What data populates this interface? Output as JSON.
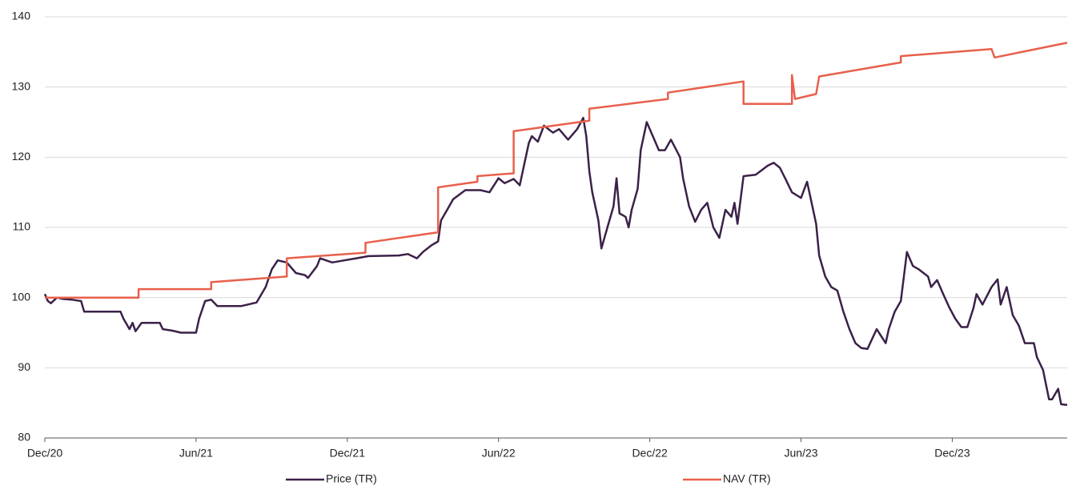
{
  "chart_data": {
    "type": "line",
    "xlim": [
      2020.92,
      2024.3
    ],
    "xticks": [
      {
        "value": 2020.92,
        "label": "Dec/20"
      },
      {
        "value": 2021.42,
        "label": "Jun/21"
      },
      {
        "value": 2021.92,
        "label": "Dec/21"
      },
      {
        "value": 2022.42,
        "label": "Jun/22"
      },
      {
        "value": 2022.92,
        "label": "Dec/22"
      },
      {
        "value": 2023.42,
        "label": "Jun/23"
      },
      {
        "value": 2023.92,
        "label": "Dec/23"
      }
    ],
    "ylim": [
      80,
      140
    ],
    "yticks": [
      80,
      90,
      100,
      110,
      120,
      130,
      140
    ],
    "grid": true,
    "series": [
      {
        "name": "Price (TR)",
        "color": "#3b2148",
        "x": [
          2020.92,
          2020.93,
          2020.94,
          2020.96,
          2020.98,
          2021.01,
          2021.04,
          2021.05,
          2021.09,
          2021.17,
          2021.18,
          2021.2,
          2021.21,
          2021.22,
          2021.24,
          2021.3,
          2021.31,
          2021.34,
          2021.37,
          2021.42,
          2021.43,
          2021.45,
          2021.47,
          2021.49,
          2021.57,
          2021.62,
          2021.65,
          2021.67,
          2021.69,
          2021.72,
          2021.75,
          2021.78,
          2021.79,
          2021.82,
          2021.83,
          2021.87,
          2021.91,
          2021.95,
          2021.99,
          2022.09,
          2022.12,
          2022.15,
          2022.17,
          2022.2,
          2022.22,
          2022.23,
          2022.25,
          2022.27,
          2022.31,
          2022.36,
          2022.39,
          2022.42,
          2022.44,
          2022.47,
          2022.49,
          2022.52,
          2022.53,
          2022.55,
          2022.57,
          2022.6,
          2022.62,
          2022.65,
          2022.68,
          2022.7,
          2022.71,
          2022.72,
          2022.73,
          2022.75,
          2022.76,
          2022.78,
          2022.8,
          2022.81,
          2022.82,
          2022.84,
          2022.85,
          2022.86,
          2022.88,
          2022.89,
          2022.91,
          2022.93,
          2022.95,
          2022.97,
          2022.99,
          2023.02,
          2023.03,
          2023.05,
          2023.07,
          2023.09,
          2023.11,
          2023.13,
          2023.15,
          2023.17,
          2023.19,
          2023.2,
          2023.21,
          2023.23,
          2023.27,
          2023.31,
          2023.33,
          2023.35,
          2023.37,
          2023.39,
          2023.42,
          2023.44,
          2023.47,
          2023.48,
          2023.5,
          2023.52,
          2023.54,
          2023.56,
          2023.58,
          2023.6,
          2023.62,
          2023.64,
          2023.67,
          2023.7,
          2023.71,
          2023.73,
          2023.75,
          2023.77,
          2023.79,
          2023.81,
          2023.84,
          2023.85,
          2023.87,
          2023.89,
          2023.91,
          2023.93,
          2023.95,
          2023.97,
          2023.99,
          2024.0,
          2024.02,
          2024.05,
          2024.07,
          2024.08,
          2024.1,
          2024.12,
          2024.14,
          2024.16,
          2024.19,
          2024.2,
          2024.22,
          2024.24,
          2024.25,
          2024.27,
          2024.28,
          2024.3
        ],
        "values": [
          100.5,
          99.5,
          99.2,
          100,
          99.8,
          99.7,
          99.5,
          98,
          98,
          98,
          97,
          95.5,
          96.4,
          95.2,
          96.4,
          96.4,
          95.5,
          95.3,
          95,
          95,
          97,
          99.5,
          99.7,
          98.8,
          98.8,
          99.3,
          101.5,
          104,
          105.3,
          105,
          103.5,
          103.2,
          102.8,
          104.5,
          105.6,
          105,
          105.3,
          105.6,
          105.9,
          106,
          106.2,
          105.6,
          106.5,
          107.5,
          108,
          111,
          112.5,
          114,
          115.3,
          115.3,
          115,
          117,
          116.3,
          116.9,
          116,
          122,
          123,
          122.2,
          124.5,
          123.5,
          124,
          122.5,
          124,
          125.6,
          123,
          118,
          115,
          111,
          107,
          110,
          113,
          117,
          112,
          111.5,
          110,
          112.5,
          115.5,
          121,
          125,
          123,
          121,
          121,
          122.5,
          120,
          117,
          113,
          110.8,
          112.5,
          113.5,
          110,
          108.5,
          112.5,
          111.5,
          113.5,
          110.5,
          117.3,
          117.5,
          118.8,
          119.2,
          118.5,
          116.8,
          115,
          114.2,
          116.5,
          110.5,
          106,
          103,
          101.5,
          101,
          98,
          95.5,
          93.5,
          92.8,
          92.7,
          95.5,
          93.5,
          95.5,
          98,
          99.5,
          106.5,
          104.5,
          104,
          103,
          101.5,
          102.5,
          100.5,
          98.6,
          97,
          95.8,
          95.8,
          98.5,
          100.5,
          99,
          101.5,
          102.6,
          99,
          101.5,
          97.5,
          96,
          93.5,
          93.5,
          91.5,
          89.7,
          85.5,
          85.5,
          87,
          84.8,
          84.7
        ]
      },
      {
        "name": "NAV (TR)",
        "color": "#e8604c",
        "x": [
          2020.92,
          2021.23,
          2021.23,
          2021.47,
          2021.47,
          2021.72,
          2021.72,
          2021.98,
          2021.98,
          2022.22,
          2022.22,
          2022.35,
          2022.35,
          2022.47,
          2022.47,
          2022.72,
          2022.72,
          2022.98,
          2022.98,
          2023.23,
          2023.23,
          2023.39,
          2023.39,
          2023.4,
          2023.47,
          2023.48,
          2023.75,
          2023.75,
          2024.05,
          2024.06,
          2024.3
        ],
        "values": [
          100,
          100,
          101.2,
          101.2,
          102.2,
          103,
          105.6,
          106.4,
          107.8,
          109.3,
          115.7,
          116.5,
          117.3,
          117.7,
          123.7,
          125.2,
          126.9,
          128.3,
          129.2,
          130.8,
          127.6,
          127.6,
          131.7,
          128.3,
          129,
          131.5,
          133.5,
          134.4,
          135.4,
          134.2,
          136.3
        ]
      }
    ]
  }
}
